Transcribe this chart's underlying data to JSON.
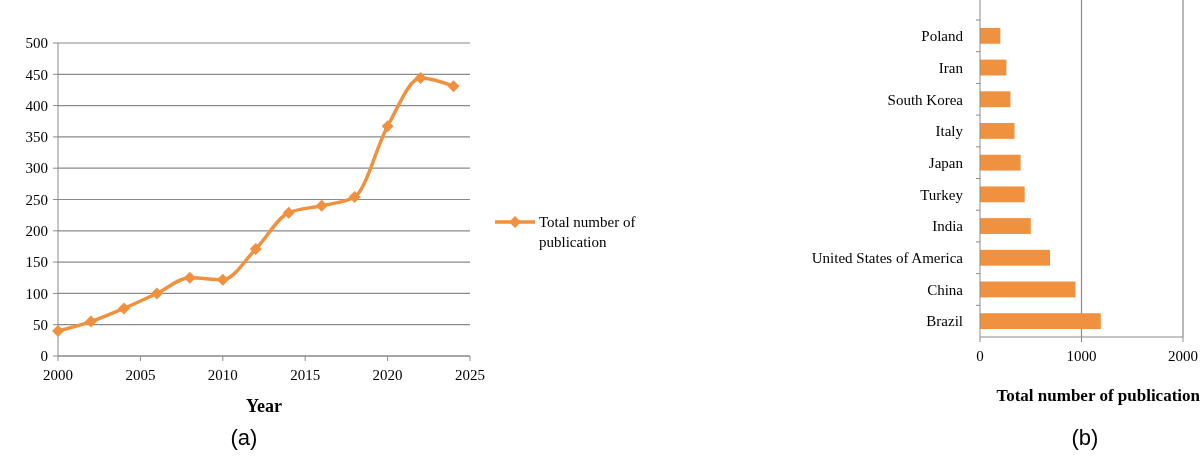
{
  "chart_data": [
    {
      "type": "line",
      "xlabel": "Year",
      "x": [
        2000,
        2002,
        2004,
        2006,
        2008,
        2010,
        2012,
        2014,
        2016,
        2018,
        2020,
        2022,
        2024
      ],
      "series": [
        {
          "name": "Total number of publication",
          "color": "#f0913f",
          "values": [
            40,
            55,
            76,
            100,
            125,
            122,
            171,
            229,
            240,
            254,
            367,
            444,
            431
          ]
        }
      ],
      "xlim": [
        2000,
        2025
      ],
      "xticks": [
        2000,
        2005,
        2010,
        2015,
        2020,
        2025
      ],
      "ylim": [
        0,
        500
      ],
      "yticks": [
        0,
        50,
        100,
        150,
        200,
        250,
        300,
        350,
        400,
        450,
        500
      ],
      "grid": "y",
      "legend": "right",
      "marker": "diamond",
      "line_style": "solid",
      "annotations": [
        "(a)"
      ]
    },
    {
      "type": "bar",
      "orientation": "horizontal",
      "xlabel": "Total number of publication",
      "categories": [
        "Poland",
        "Iran",
        "South Korea",
        "Italy",
        "Japan",
        "Turkey",
        "India",
        "United States of America",
        "China",
        "Brazil"
      ],
      "values": [
        200,
        260,
        300,
        340,
        400,
        440,
        500,
        690,
        940,
        1190
      ],
      "color": "#f0913f",
      "xlim": [
        0,
        2000
      ],
      "xticks": [
        0,
        1000,
        2000
      ],
      "grid": "x",
      "annotations": [
        "(b)"
      ]
    }
  ]
}
